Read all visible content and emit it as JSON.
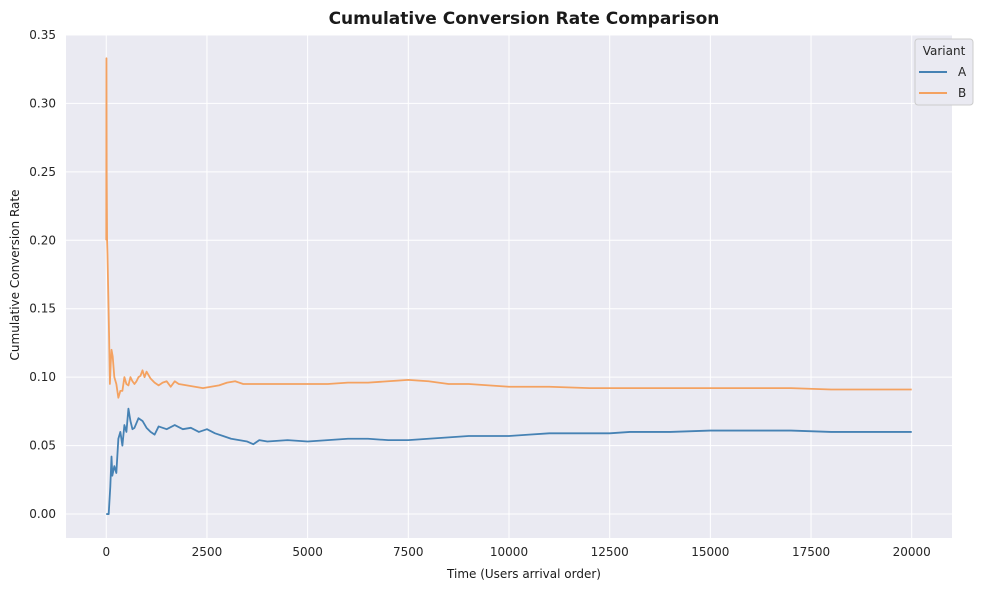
{
  "chart_data": {
    "type": "line",
    "title": "Cumulative Conversion Rate Comparison",
    "xlabel": "Time (Users arrival order)",
    "ylabel": "Cumulative Conversion Rate",
    "xlim": [
      -1000,
      21000
    ],
    "ylim": [
      -0.0175,
      0.35
    ],
    "xticks": [
      0,
      2500,
      5000,
      7500,
      10000,
      12500,
      15000,
      17500,
      20000
    ],
    "xtick_labels": [
      "0",
      "2500",
      "5000",
      "7500",
      "10000",
      "12500",
      "15000",
      "17500",
      "20000"
    ],
    "yticks": [
      0.0,
      0.05,
      0.1,
      0.15,
      0.2,
      0.25,
      0.3,
      0.35
    ],
    "ytick_labels": [
      "0.00",
      "0.05",
      "0.10",
      "0.15",
      "0.20",
      "0.25",
      "0.30",
      "0.35"
    ],
    "grid": true,
    "legend": {
      "title": "Variant",
      "placement": "top-right"
    },
    "series": [
      {
        "name": "A",
        "color": "#4682b4",
        "x": [
          0,
          50,
          60,
          100,
          130,
          150,
          200,
          250,
          300,
          350,
          400,
          450,
          500,
          550,
          600,
          650,
          700,
          800,
          900,
          1000,
          1100,
          1200,
          1300,
          1500,
          1700,
          1900,
          2100,
          2300,
          2500,
          2700,
          2900,
          3100,
          3300,
          3500,
          3650,
          3800,
          4000,
          4500,
          5000,
          5500,
          6000,
          6500,
          7000,
          7500,
          8000,
          8500,
          9000,
          9500,
          10000,
          10500,
          11000,
          11500,
          12000,
          12500,
          13000,
          14000,
          15000,
          16000,
          17000,
          18000,
          19000,
          20000
        ],
        "y": [
          0.0,
          0.0,
          0.0,
          0.02,
          0.042,
          0.028,
          0.035,
          0.03,
          0.055,
          0.06,
          0.05,
          0.065,
          0.06,
          0.077,
          0.068,
          0.062,
          0.063,
          0.07,
          0.068,
          0.063,
          0.06,
          0.058,
          0.064,
          0.062,
          0.065,
          0.062,
          0.063,
          0.06,
          0.062,
          0.059,
          0.057,
          0.055,
          0.054,
          0.053,
          0.051,
          0.054,
          0.053,
          0.054,
          0.053,
          0.054,
          0.055,
          0.055,
          0.054,
          0.054,
          0.055,
          0.056,
          0.057,
          0.057,
          0.057,
          0.058,
          0.059,
          0.059,
          0.059,
          0.059,
          0.06,
          0.06,
          0.061,
          0.061,
          0.061,
          0.06,
          0.06,
          0.06
        ]
      },
      {
        "name": "B",
        "color": "#f4a261",
        "x": [
          0,
          5,
          10,
          20,
          30,
          50,
          70,
          90,
          110,
          130,
          160,
          200,
          250,
          300,
          350,
          400,
          450,
          500,
          550,
          600,
          650,
          700,
          750,
          800,
          850,
          900,
          950,
          1000,
          1100,
          1200,
          1300,
          1400,
          1500,
          1600,
          1700,
          1800,
          2000,
          2200,
          2400,
          2600,
          2800,
          3000,
          3200,
          3400,
          3600,
          3800,
          4000,
          4500,
          5000,
          5500,
          6000,
          6500,
          7000,
          7500,
          8000,
          8500,
          9000,
          9500,
          10000,
          11000,
          12000,
          13000,
          14000,
          15000,
          16000,
          17000,
          18000,
          19000,
          20000
        ],
        "y": [
          0.2,
          0.333,
          0.25,
          0.2,
          0.19,
          0.16,
          0.13,
          0.095,
          0.11,
          0.12,
          0.115,
          0.1,
          0.095,
          0.085,
          0.09,
          0.09,
          0.1,
          0.095,
          0.094,
          0.1,
          0.097,
          0.095,
          0.097,
          0.1,
          0.101,
          0.105,
          0.1,
          0.104,
          0.099,
          0.096,
          0.094,
          0.096,
          0.097,
          0.093,
          0.097,
          0.095,
          0.094,
          0.093,
          0.092,
          0.093,
          0.094,
          0.096,
          0.097,
          0.095,
          0.095,
          0.095,
          0.095,
          0.095,
          0.095,
          0.095,
          0.096,
          0.096,
          0.097,
          0.098,
          0.097,
          0.095,
          0.095,
          0.094,
          0.093,
          0.093,
          0.092,
          0.092,
          0.092,
          0.092,
          0.092,
          0.092,
          0.091,
          0.091,
          0.091
        ]
      }
    ]
  }
}
